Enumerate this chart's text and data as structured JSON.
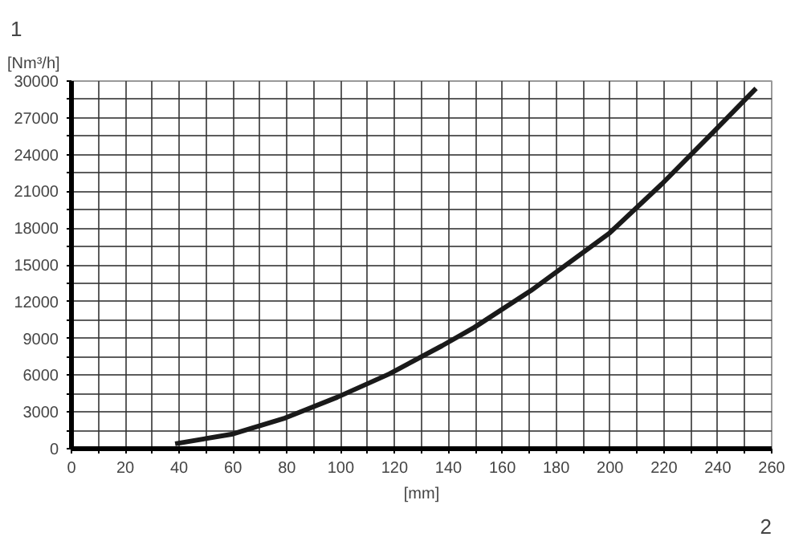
{
  "chart_data": {
    "type": "line",
    "xlabel": "[mm]",
    "ylabel": "[Nm³/h]",
    "annotations": [
      "1",
      "2"
    ],
    "x": [
      38.5,
      59.9,
      79.3,
      98.7,
      118,
      137.6,
      149.6,
      170.6,
      199.8,
      219.2,
      238.6,
      254.2
    ],
    "series": [
      {
        "color": "#1a1a1a",
        "values": [
          400,
          1200,
          2500,
          4200,
          6100,
          8400,
          9900,
          12900,
          17600,
          21600,
          25900,
          29400
        ]
      }
    ],
    "xlim": [
      0,
      260
    ],
    "ylim": [
      0,
      30000
    ],
    "xticks": [
      0,
      {
        "value": 10,
        "label": null
      },
      20,
      {
        "value": 30,
        "label": null
      },
      40,
      {
        "value": 50,
        "label": null
      },
      60,
      {
        "value": 70,
        "label": null
      },
      80,
      {
        "value": 90,
        "label": null
      },
      100,
      {
        "value": 110,
        "label": null
      },
      120,
      {
        "value": 130,
        "label": null
      },
      140,
      {
        "value": 150,
        "label": null
      },
      160,
      {
        "value": 170,
        "label": null
      },
      180,
      {
        "value": 190,
        "label": null
      },
      200,
      {
        "value": 210,
        "label": null
      },
      220,
      {
        "value": 230,
        "label": null
      },
      240,
      {
        "value": 250,
        "label": null
      },
      260
    ],
    "yticks": [
      0,
      {
        "value": 1500,
        "label": null
      },
      3000,
      {
        "value": 4500,
        "label": null
      },
      6000,
      {
        "value": 7500,
        "label": null
      },
      9000,
      {
        "value": 10500,
        "label": null
      },
      12000,
      {
        "value": 13500,
        "label": null
      },
      15000,
      {
        "value": 16500,
        "label": null
      },
      18000,
      {
        "value": 19500,
        "label": null
      },
      21000,
      {
        "value": 22500,
        "label": null
      },
      24000,
      {
        "value": 25500,
        "label": null
      },
      27000,
      {
        "value": 28500,
        "label": null
      },
      30000
    ],
    "grid": true,
    "marker": "none",
    "line_style": "solid"
  }
}
